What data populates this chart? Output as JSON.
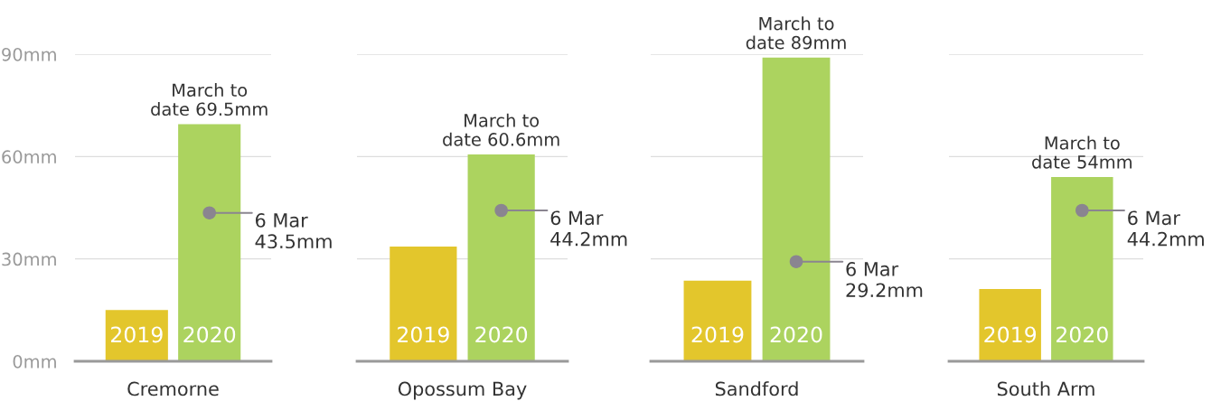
{
  "chart_data": [
    {
      "type": "bar",
      "xlabel": "Cremorne",
      "categories": [
        "2019",
        "2020"
      ],
      "ylim": [
        0,
        90
      ],
      "yticks": [
        {
          "value": 0,
          "label": "0mm"
        },
        {
          "value": 30,
          "label": "30mm"
        },
        {
          "value": 60,
          "label": "60mm"
        },
        {
          "value": 90,
          "label": "90mm"
        }
      ],
      "grid": "y",
      "series": [
        {
          "type": "bar",
          "values": [
            15,
            69.5
          ],
          "colors": [
            "#e3c62c",
            "#acd35f"
          ],
          "value_labels": [
            null,
            "March to\ndate 69.5mm"
          ]
        },
        {
          "type": "scatter",
          "values": [
            null,
            43.5
          ],
          "color": "#8a8590",
          "value_labels": [
            null,
            "6 Mar\n43.5mm"
          ]
        }
      ]
    },
    {
      "type": "bar",
      "xlabel": "Opossum Bay",
      "categories": [
        "2019",
        "2020"
      ],
      "ylim": [
        0,
        90
      ],
      "yticks": [
        0,
        30,
        60,
        90
      ],
      "grid": "y",
      "tick_labels": "x",
      "series": [
        {
          "type": "bar",
          "values": [
            33.6,
            60.6
          ],
          "colors": [
            "#e3c62c",
            "#acd35f"
          ],
          "value_labels": [
            null,
            "March to\ndate 60.6mm"
          ]
        },
        {
          "type": "scatter",
          "values": [
            null,
            44.2
          ],
          "color": "#8a8590",
          "value_labels": [
            null,
            "6 Mar\n44.2mm"
          ]
        }
      ]
    },
    {
      "type": "bar",
      "xlabel": "Sandford",
      "categories": [
        "2019",
        "2020"
      ],
      "ylim": [
        0,
        90
      ],
      "yticks": [
        0,
        30,
        60,
        90
      ],
      "grid": "y",
      "tick_labels": "x",
      "series": [
        {
          "type": "bar",
          "values": [
            23.6,
            89
          ],
          "colors": [
            "#e3c62c",
            "#acd35f"
          ],
          "value_labels": [
            null,
            "March to\ndate 89mm"
          ]
        },
        {
          "type": "scatter",
          "values": [
            null,
            29.2
          ],
          "color": "#8a8590",
          "value_labels": [
            null,
            "6 Mar\n29.2mm"
          ]
        }
      ]
    },
    {
      "type": "bar",
      "xlabel": "South Arm",
      "categories": [
        "2019",
        "2020"
      ],
      "ylim": [
        0,
        90
      ],
      "yticks": [
        0,
        30,
        60,
        90
      ],
      "grid": "y",
      "tick_labels": "x",
      "series": [
        {
          "type": "bar",
          "values": [
            21.2,
            54
          ],
          "colors": [
            "#e3c62c",
            "#acd35f"
          ],
          "value_labels": [
            null,
            "March to\ndate 54mm"
          ]
        },
        {
          "type": "scatter",
          "values": [
            null,
            44.2
          ],
          "color": "#8a8590",
          "value_labels": [
            null,
            "6 Mar\n44.2mm"
          ]
        }
      ]
    }
  ]
}
